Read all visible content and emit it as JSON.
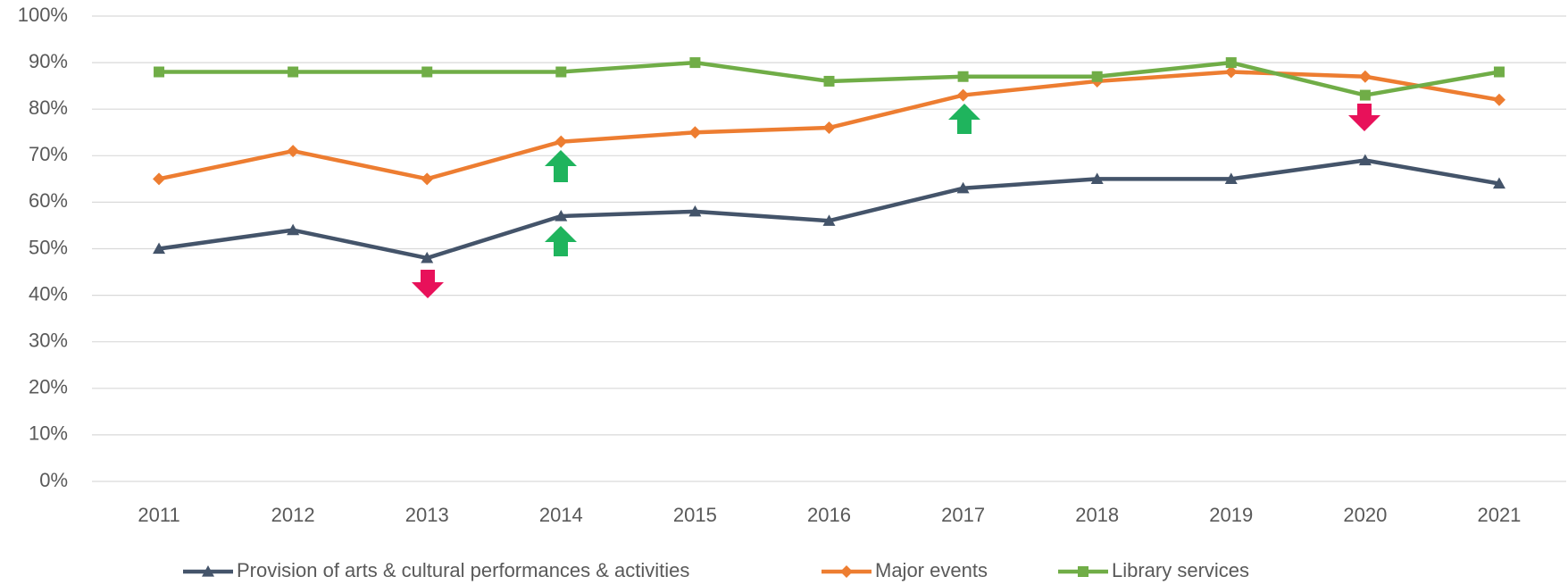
{
  "chart_data": {
    "type": "line",
    "categories": [
      "2011",
      "2012",
      "2013",
      "2014",
      "2015",
      "2016",
      "2017",
      "2018",
      "2019",
      "2020",
      "2021"
    ],
    "series": [
      {
        "name": "Provision of arts & cultural performances & activities",
        "color": "#44546a",
        "marker": "triangle",
        "values": [
          50,
          54,
          48,
          57,
          58,
          56,
          63,
          65,
          65,
          69,
          64
        ]
      },
      {
        "name": "Major events",
        "color": "#ed7d31",
        "marker": "diamond",
        "values": [
          65,
          71,
          65,
          73,
          75,
          76,
          83,
          86,
          88,
          87,
          82
        ]
      },
      {
        "name": "Library services",
        "color": "#70ad47",
        "marker": "square",
        "values": [
          88,
          88,
          88,
          88,
          90,
          86,
          87,
          87,
          90,
          83,
          88
        ]
      }
    ],
    "ylim": [
      0,
      100
    ],
    "yticks": [
      {
        "value": 0,
        "label": "0%"
      },
      {
        "value": 10,
        "label": "10%"
      },
      {
        "value": 20,
        "label": "20%"
      },
      {
        "value": 30,
        "label": "30%"
      },
      {
        "value": 40,
        "label": "40%"
      },
      {
        "value": 50,
        "label": "50%"
      },
      {
        "value": 60,
        "label": "60%"
      },
      {
        "value": 70,
        "label": "70%"
      },
      {
        "value": 80,
        "label": "80%"
      },
      {
        "value": 90,
        "label": "90%"
      },
      {
        "value": 100,
        "label": "100%"
      }
    ],
    "grid": true,
    "legend": "bottom"
  }
}
